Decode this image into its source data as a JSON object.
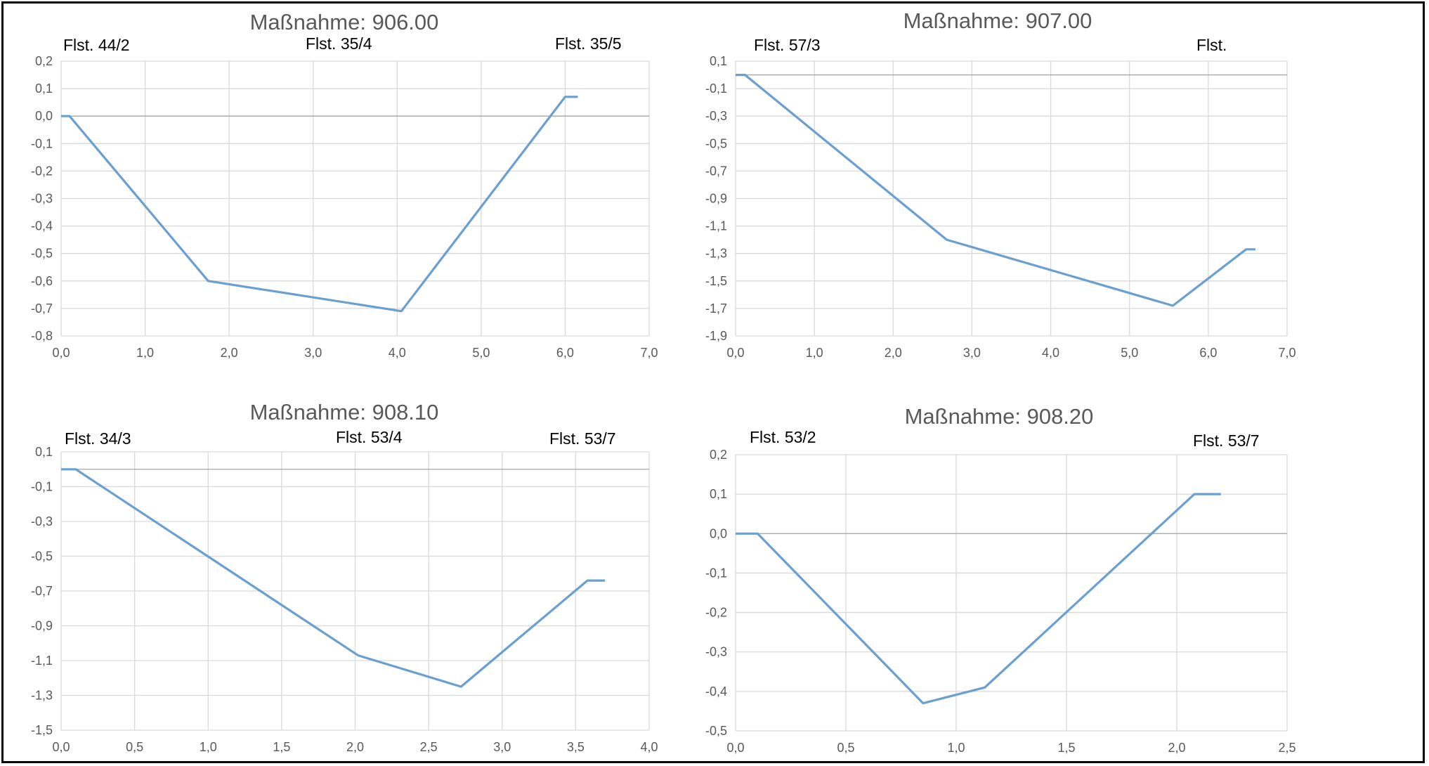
{
  "chart_data": [
    {
      "type": "line",
      "title": "Maßnahme: 906.00",
      "xlim": [
        0,
        7
      ],
      "xstep": 1,
      "ylim": [
        -0.8,
        0.2
      ],
      "ystep": 0.1,
      "x_tick_labels": [
        "0,0",
        "1,0",
        "2,0",
        "3,0",
        "4,0",
        "5,0",
        "6,0",
        "7,0"
      ],
      "y_tick_labels": [
        "0,2",
        "0,1",
        "0,0",
        "-0,1",
        "-0,2",
        "-0,3",
        "-0,4",
        "-0,5",
        "-0,6",
        "-0,7",
        "-0,8"
      ],
      "grid": true,
      "series": [
        {
          "x": [
            0.0,
            0.1,
            1.75,
            4.05,
            6.0,
            6.15
          ],
          "y": [
            0.0,
            0.0,
            -0.6,
            -0.71,
            0.07,
            0.07
          ]
        }
      ],
      "annotations": [
        "Flst. 44/2",
        "Flst. 35/4",
        "Flst. 35/5"
      ]
    },
    {
      "type": "line",
      "title": "Maßnahme: 907.00",
      "xlim": [
        0,
        7
      ],
      "xstep": 1,
      "ylim": [
        -1.9,
        0.1
      ],
      "ystep": 0.2,
      "x_tick_labels": [
        "0,0",
        "1,0",
        "2,0",
        "3,0",
        "4,0",
        "5,0",
        "6,0",
        "7,0"
      ],
      "y_tick_labels": [
        "0,1",
        "-0,1",
        "-0,3",
        "-0,5",
        "-0,7",
        "-0,9",
        "-1,1",
        "-1,3",
        "-1,5",
        "-1,7",
        "-1,9"
      ],
      "grid": true,
      "series": [
        {
          "x": [
            0.0,
            0.12,
            2.68,
            5.55,
            6.48,
            6.6
          ],
          "y": [
            0.0,
            0.0,
            -1.2,
            -1.68,
            -1.27,
            -1.27
          ]
        }
      ],
      "annotations": [
        "Flst. 57/3",
        "Flst."
      ]
    },
    {
      "type": "line",
      "title": "Maßnahme: 908.10",
      "xlim": [
        0,
        4
      ],
      "xstep": 0.5,
      "ylim": [
        -1.5,
        0.1
      ],
      "ystep": 0.2,
      "x_tick_labels": [
        "0,0",
        "0,5",
        "1,0",
        "1,5",
        "2,0",
        "2,5",
        "3,0",
        "3,5",
        "4,0"
      ],
      "y_tick_labels": [
        "0,1",
        "-0,1",
        "-0,3",
        "-0,5",
        "-0,7",
        "-0,9",
        "-1,1",
        "-1,3",
        "-1,5"
      ],
      "grid": true,
      "series": [
        {
          "x": [
            0.0,
            0.1,
            2.02,
            2.72,
            3.58,
            3.7
          ],
          "y": [
            0.0,
            0.0,
            -1.07,
            -1.25,
            -0.64,
            -0.64
          ]
        }
      ],
      "annotations": [
        "Flst. 34/3",
        "Flst. 53/4",
        "Flst. 53/7"
      ]
    },
    {
      "type": "line",
      "title": "Maßnahme: 908.20",
      "xlim": [
        0,
        2.5
      ],
      "xstep": 0.5,
      "ylim": [
        -0.5,
        0.2
      ],
      "ystep": 0.1,
      "x_tick_labels": [
        "0,0",
        "0,5",
        "1,0",
        "1,5",
        "2,0",
        "2,5"
      ],
      "y_tick_labels": [
        "0,2",
        "0,1",
        "0,0",
        "-0,1",
        "-0,2",
        "-0,3",
        "-0,4",
        "-0,5"
      ],
      "grid": true,
      "series": [
        {
          "x": [
            0.0,
            0.1,
            0.85,
            1.13,
            2.08,
            2.2
          ],
          "y": [
            0.0,
            0.0,
            -0.43,
            -0.39,
            0.1,
            0.1
          ]
        }
      ],
      "annotations": [
        "Flst. 53/2",
        "Flst. 53/7"
      ]
    }
  ]
}
